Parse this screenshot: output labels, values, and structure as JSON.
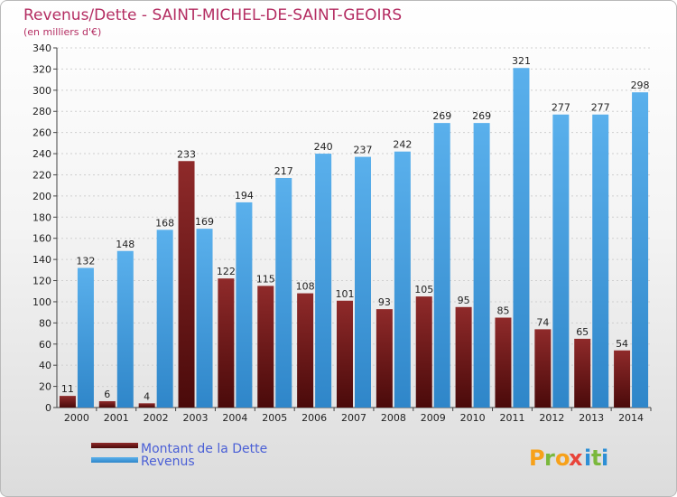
{
  "chart_data": {
    "type": "bar",
    "title": "Revenus/Dette - SAINT-MICHEL-DE-SAINT-GEOIRS",
    "subtitle": "(en milliers d'€)",
    "xlabel": "",
    "ylabel": "",
    "ylim": [
      0,
      340
    ],
    "ytick_step": 20,
    "grid": true,
    "categories": [
      "2000",
      "2001",
      "2002",
      "2003",
      "2004",
      "2005",
      "2006",
      "2007",
      "2008",
      "2009",
      "2010",
      "2011",
      "2012",
      "2013",
      "2014"
    ],
    "series": [
      {
        "name": "Montant de la Dette",
        "color": "#7a1f1f",
        "values": [
          11,
          6,
          4,
          233,
          122,
          115,
          108,
          101,
          93,
          105,
          95,
          85,
          74,
          65,
          54
        ]
      },
      {
        "name": "Revenus",
        "color": "#4ba3e3",
        "values": [
          132,
          148,
          168,
          169,
          194,
          217,
          240,
          237,
          242,
          269,
          269,
          321,
          277,
          277,
          298
        ]
      }
    ],
    "legend_position": "bottom-left"
  },
  "branding": {
    "logo_letters": [
      "P",
      "r",
      "o",
      "x",
      "i",
      "t",
      "i"
    ],
    "logo_colors": [
      "#f7a11a",
      "#7ab83c",
      "#f7a11a",
      "#e8443a",
      "#2d8fd5",
      "#7ab83c",
      "#2d8fd5"
    ]
  }
}
